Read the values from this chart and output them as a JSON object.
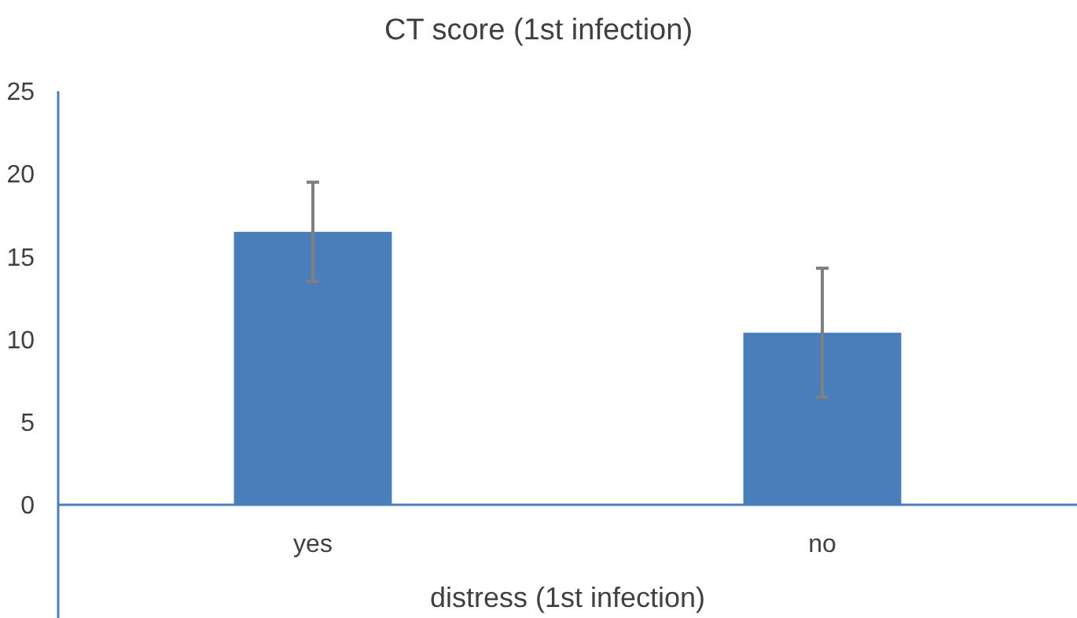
{
  "chart_data": {
    "type": "bar",
    "title": "CT score (1st infection)",
    "xlabel": "distress (1st infection)",
    "categories": [
      "yes",
      "no"
    ],
    "values": [
      16.5,
      10.4
    ],
    "errors": [
      3,
      3.9
    ],
    "color": "#4a7ebb",
    "ylim": [
      0,
      25
    ],
    "yticks": [
      0,
      5,
      10,
      15,
      20,
      25
    ],
    "grid": false
  }
}
